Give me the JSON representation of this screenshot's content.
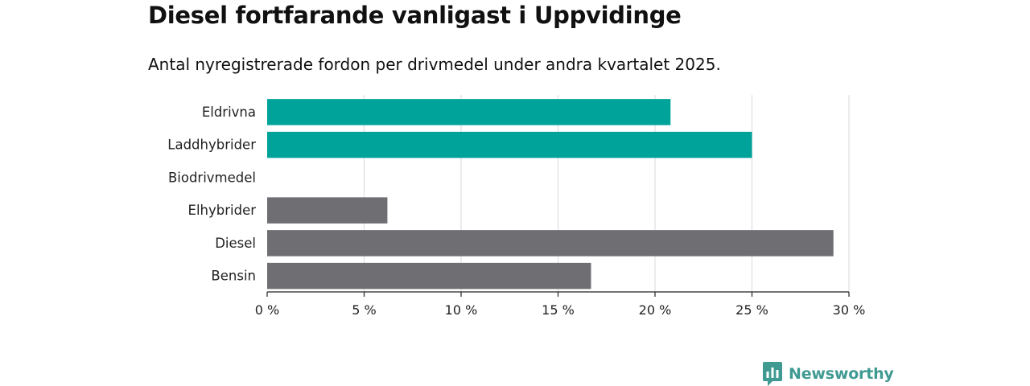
{
  "header": {
    "title": "Diesel fortfarande vanligast i Uppvidinge",
    "subtitle": "Antal nyregistrerade fordon per drivmedel under andra kvartalet 2025."
  },
  "brand": {
    "name": "Newsworthy",
    "color": "#3f9a92",
    "icon": "bar-chart-logo-icon"
  },
  "colors": {
    "highlight": "#00a39a",
    "default": "#6e6e73",
    "grid": "#d9d9d9",
    "axis": "#222222"
  },
  "chart_data": {
    "type": "bar",
    "orientation": "horizontal",
    "categories": [
      "Eldrivna",
      "Laddhybrider",
      "Biodrivmedel",
      "Elhybrider",
      "Diesel",
      "Bensin"
    ],
    "values": [
      20.8,
      25.0,
      0,
      6.2,
      29.2,
      16.7
    ],
    "highlight": [
      true,
      true,
      false,
      false,
      false,
      false
    ],
    "xlim": [
      0,
      30
    ],
    "xticks": [
      0,
      5,
      10,
      15,
      20,
      25,
      30
    ],
    "xtick_labels": [
      "0 %",
      "5 %",
      "10 %",
      "15 %",
      "20 %",
      "25 %",
      "30 %"
    ],
    "grid": "vertical",
    "legend": "none"
  }
}
